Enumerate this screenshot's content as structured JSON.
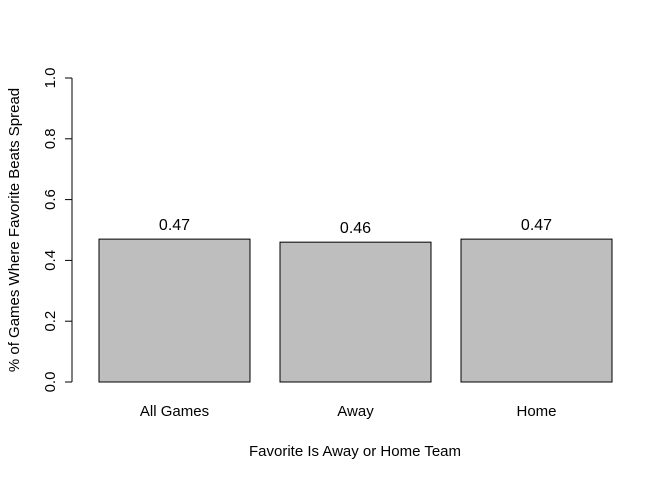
{
  "chart_data": {
    "type": "bar",
    "categories": [
      "All Games",
      "Away",
      "Home"
    ],
    "values": [
      0.47,
      0.46,
      0.47
    ],
    "data_labels": [
      "0.47",
      "0.46",
      "0.47"
    ],
    "xlabel": "Favorite Is Away or Home Team",
    "ylabel": "% of Games Where Favorite Beats Spread",
    "ylim": [
      0,
      1
    ],
    "yticks": [
      "0.0",
      "0.2",
      "0.4",
      "0.6",
      "0.8",
      "1.0"
    ],
    "grid": false,
    "bar_color": "#bebebe",
    "bar_border_color": "#000000"
  }
}
